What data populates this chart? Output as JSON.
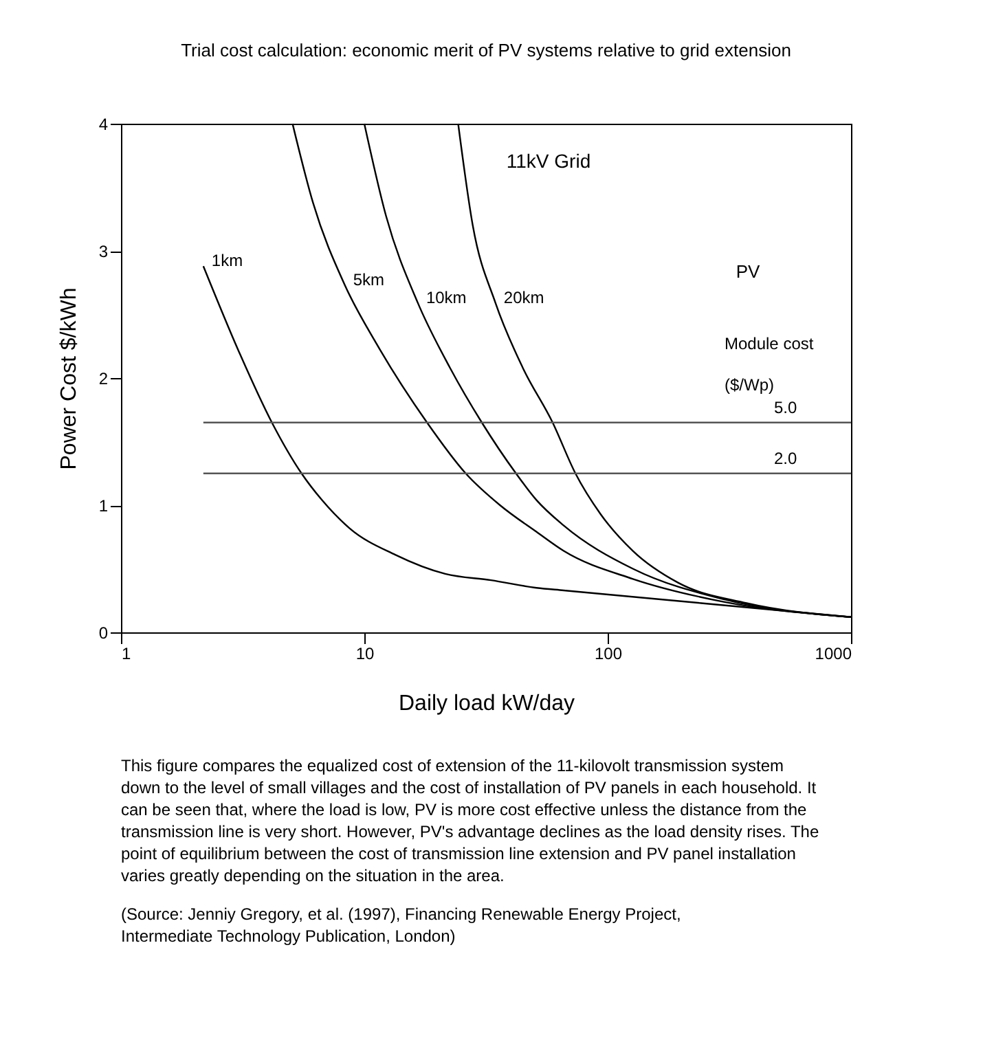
{
  "chart_data": {
    "type": "line",
    "title": "Trial cost calculation: economic merit of PV systems relative to grid extension",
    "xlabel": "Daily load kW/day",
    "ylabel": "Power Cost $/kWh",
    "log": "x",
    "xlim": [
      1,
      1000
    ],
    "xticks": [
      1,
      10,
      100,
      1000
    ],
    "ylim": [
      0,
      4
    ],
    "yticks": [
      0,
      1,
      2,
      3,
      4
    ],
    "grid": false,
    "marker": "none",
    "line_style": "solid",
    "series": [
      {
        "name": "1km",
        "color": "#000000",
        "x": [
          2.18,
          3.08,
          4.17,
          5.52,
          6.7,
          8.68,
          13.4,
          21.5,
          33.2,
          51,
          66,
          242,
          1000
        ],
        "values": [
          2.88,
          2.19,
          1.65,
          1.25,
          1.04,
          0.82,
          0.61,
          0.46,
          0.41,
          0.35,
          0.33,
          0.23,
          0.12
        ]
      },
      {
        "name": "5km",
        "color": "#000000",
        "x": [
          5.07,
          6.15,
          8.32,
          11.3,
          18.1,
          26.1,
          36.1,
          51,
          66,
          127,
          300,
          1000
        ],
        "values": [
          4,
          3.38,
          2.73,
          2.26,
          1.65,
          1.25,
          1.0,
          0.79,
          0.64,
          0.42,
          0.24,
          0.12
        ]
      },
      {
        "name": "10km",
        "color": "#000000",
        "x": [
          10,
          12.3,
          16.6,
          22.5,
          30.4,
          42,
          51,
          66,
          127,
          300,
          1000
        ],
        "values": [
          4,
          3.27,
          2.59,
          2.08,
          1.65,
          1.25,
          1.04,
          0.84,
          0.5,
          0.26,
          0.12
        ]
      },
      {
        "name": "20km",
        "color": "#000000",
        "x": [
          24.3,
          27.9,
          34.6,
          44.8,
          59.4,
          73.7,
          93.5,
          127,
          195,
          372,
          1000
        ],
        "values": [
          4,
          3.2,
          2.59,
          2.08,
          1.65,
          1.25,
          0.93,
          0.64,
          0.39,
          0.23,
          0.12
        ]
      },
      {
        "name": "5.0",
        "color": "#555555",
        "x": [
          2.18,
          1000
        ],
        "values": [
          1.65,
          1.65
        ]
      },
      {
        "name": "2.0",
        "color": "#555555",
        "x": [
          2.18,
          1000
        ],
        "values": [
          1.25,
          1.25
        ]
      }
    ],
    "annotations": [
      "11kV Grid",
      "PV",
      "Module cost",
      "($/Wp)",
      "This figure compares the equalized cost of extension of the 11-kilovolt transmission system\ndown to the level of small villages and the cost of installation of PV panels in each household.  It\ncan be seen that, where the load is low, PV is more cost effective unless the distance from the\ntransmission line is very short.  However, PV's advantage declines as the load density rises.  The\npoint of equilibrium between the cost of transmission line extension and PV panel installation\nvaries greatly depending on the situation in the area.",
      "(Source: Jenniy Gregory, et al. (1997), Financing Renewable Energy Project,\n      Intermediate Technology Publication, London)"
    ]
  }
}
